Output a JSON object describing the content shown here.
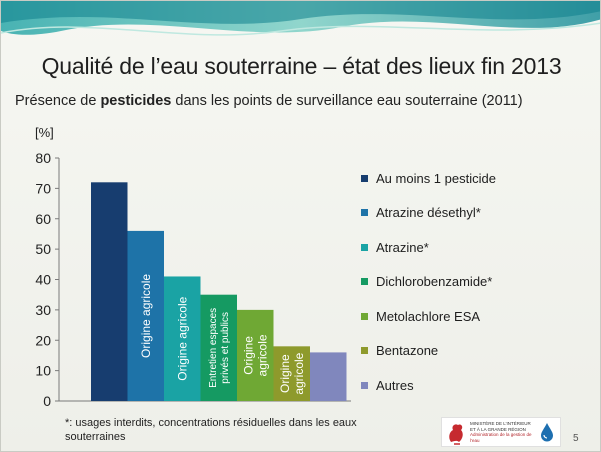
{
  "slide": {
    "title": "Qualité de l’eau souterraine – état des lieux fin 2013",
    "subtitle_pre": "Présence de ",
    "subtitle_bold": "pesticides",
    "subtitle_post": " dans les points de surveillance eau souterraine (2011)",
    "footnote": "*: usages interdits, concentrations résiduelles dans les eaux souterraines",
    "page_number": "5",
    "logo": {
      "line1": "MINISTÈRE DE L’INTÉRIEUR",
      "line2": "ET À LA GRANDE RÉGION",
      "line3": "Administration de la gestion de l’eau"
    }
  },
  "chart_data": {
    "type": "bar",
    "title": "",
    "xlabel": "",
    "ylabel": "[%]",
    "ylim": [
      0,
      80
    ],
    "yticks": [
      0,
      10,
      20,
      30,
      40,
      50,
      60,
      70,
      80
    ],
    "grid": false,
    "legend_position": "right",
    "series": [
      {
        "name": "Au moins 1 pesticide",
        "value": 72,
        "color": "#173d6f",
        "label": ""
      },
      {
        "name": "Atrazine désethyl*",
        "value": 56,
        "color": "#1e73a8",
        "label": "Origine agricole"
      },
      {
        "name": "Atrazine*",
        "value": 41,
        "color": "#1aa3a4",
        "label": "Origine agricole"
      },
      {
        "name": "Dichlorobenzamide*",
        "value": 35,
        "color": "#159a62",
        "label": "Entretien espaces privés et publics"
      },
      {
        "name": "Metolachlore ESA",
        "value": 30,
        "color": "#6fa834",
        "label": "Origine agricole"
      },
      {
        "name": "Bentazone",
        "value": 18,
        "color": "#8e9a2c",
        "label": "Origine agricole"
      },
      {
        "name": "Autres",
        "value": 16,
        "color": "#8087bd",
        "label": ""
      }
    ]
  }
}
